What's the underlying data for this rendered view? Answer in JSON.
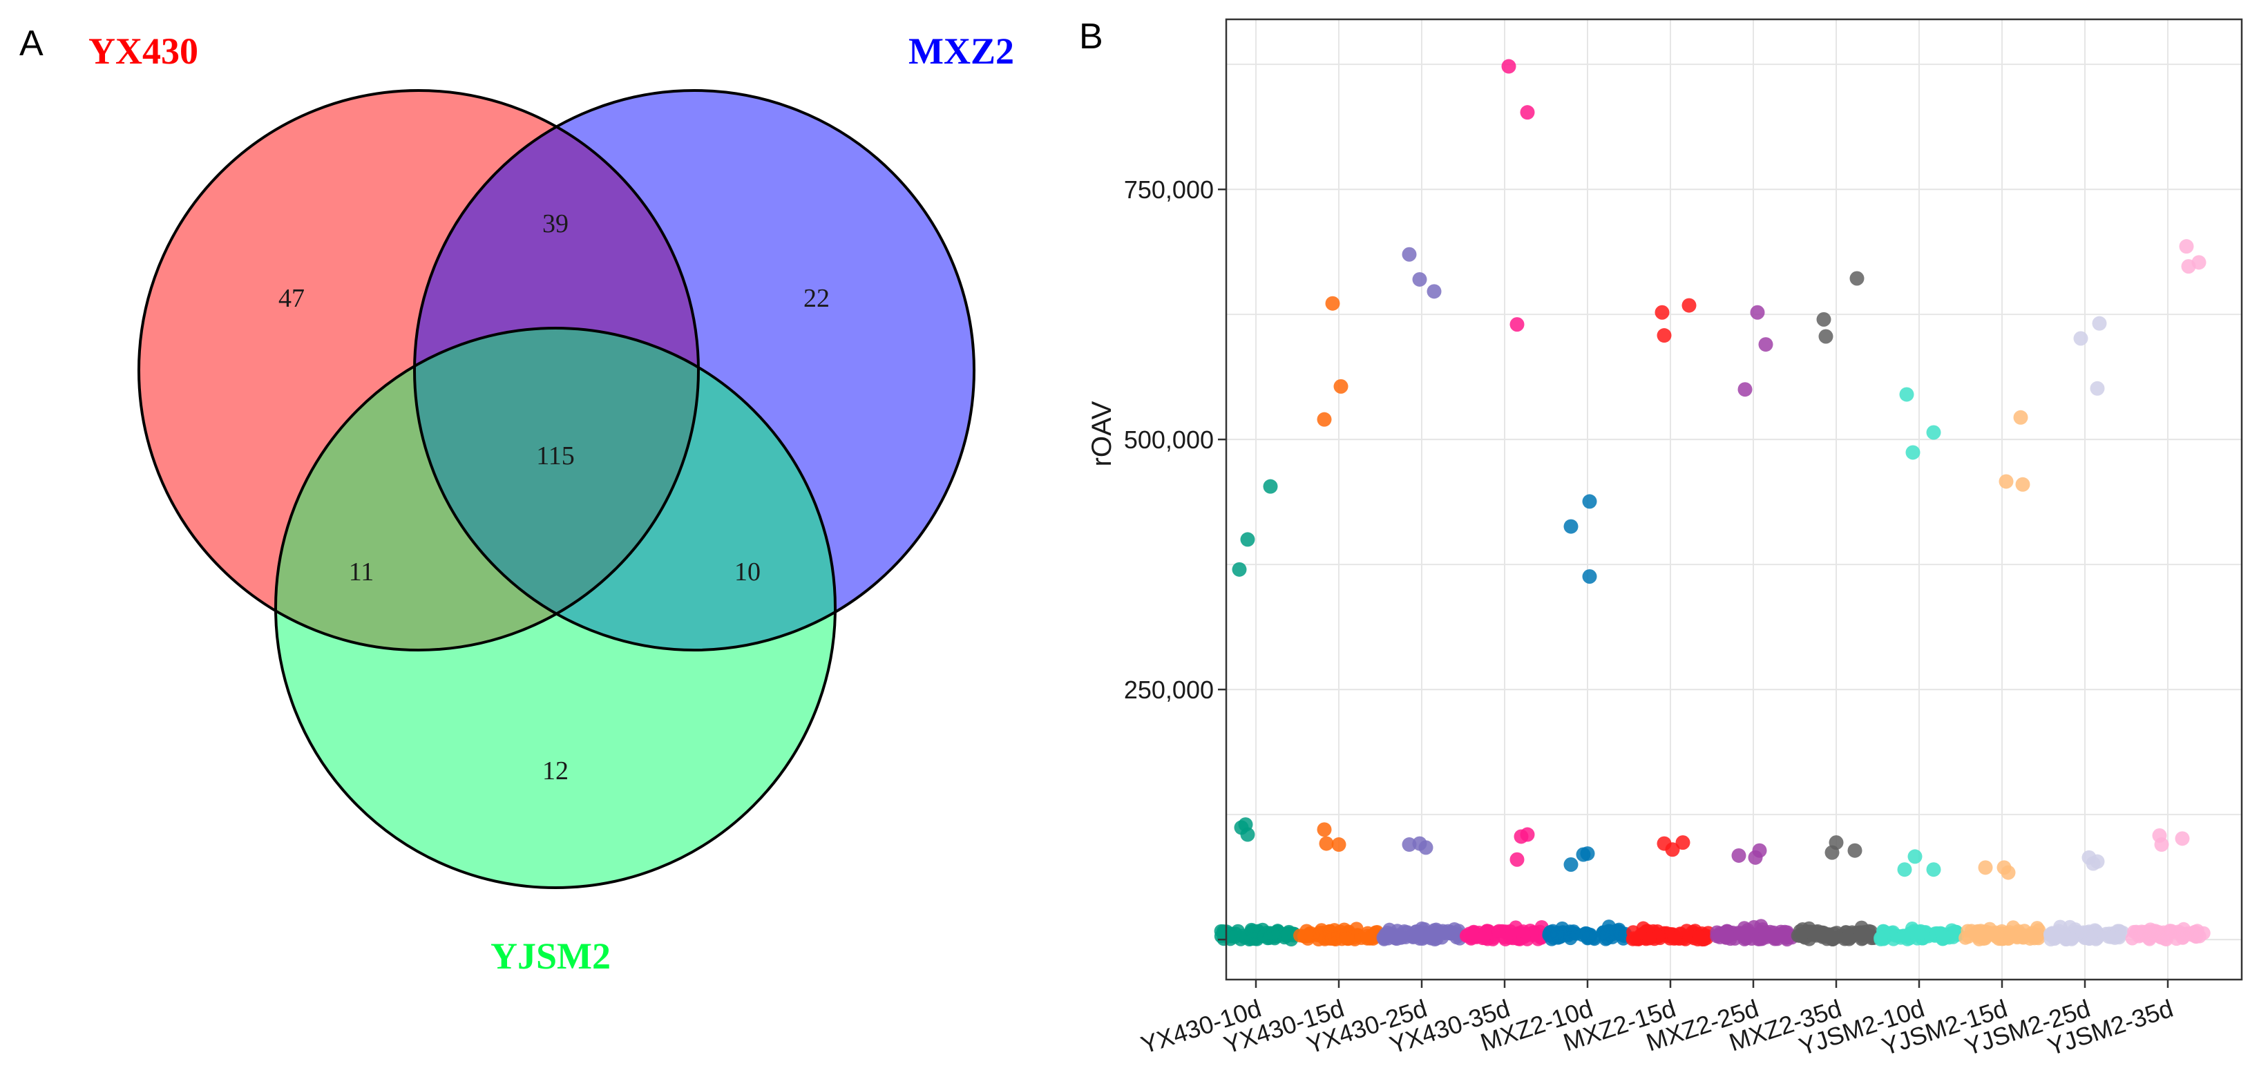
{
  "panel_labels": {
    "a": "A",
    "b": "B"
  },
  "colors": {
    "yx430": "#ff0000",
    "mxz2": "#0000ff",
    "yjsm2": "#00ff44",
    "groups": [
      "#009e82",
      "#ff6a0a",
      "#7a6fbf",
      "#ff1a8c",
      "#0077b5",
      "#ff1a1a",
      "#a041a8",
      "#606060",
      "#40e0c8",
      "#ffbc7a",
      "#cfcfe8",
      "#ffb0d8"
    ]
  },
  "chart_data": [
    {
      "type": "venn",
      "sets": [
        "YX430",
        "MXZ2",
        "YJSM2"
      ],
      "regions": [
        {
          "sets": [
            "YX430"
          ],
          "label": "47"
        },
        {
          "sets": [
            "MXZ2"
          ],
          "label": "22"
        },
        {
          "sets": [
            "YJSM2"
          ],
          "label": "12"
        },
        {
          "sets": [
            "YX430",
            "MXZ2"
          ],
          "label": "39"
        },
        {
          "sets": [
            "YX430",
            "YJSM2"
          ],
          "label": "11"
        },
        {
          "sets": [
            "MXZ2",
            "YJSM2"
          ],
          "label": "10"
        },
        {
          "sets": [
            "YX430",
            "MXZ2",
            "YJSM2"
          ],
          "label": "115"
        }
      ]
    },
    {
      "type": "scatter",
      "title": "",
      "xlabel": "",
      "ylabel": "rOAV",
      "ylim": [
        -40000,
        920000
      ],
      "yticks": [
        0,
        250000,
        500000,
        750000
      ],
      "ytick_labels": [
        "",
        "250,000",
        "500,000",
        "750,000"
      ],
      "grid": true,
      "legend": "none",
      "categories": [
        "YX430-10d",
        "YX430-15d",
        "YX430-25d",
        "YX430-35d",
        "MXZ2-10d",
        "MXZ2-15d",
        "MXZ2-25d",
        "MXZ2-35d",
        "YJSM2-10d",
        "YJSM2-15d",
        "YJSM2-25d",
        "YJSM2-35d"
      ],
      "series": [
        {
          "name": "YX430-10d",
          "high": [
            [
              -0.4,
              370000
            ],
            [
              -0.2,
              400000
            ],
            [
              0.35,
              453000
            ]
          ],
          "mid": [
            [
              -0.35,
              112000
            ],
            [
              -0.25,
              115000
            ],
            [
              -0.2,
              105000
            ]
          ]
        },
        {
          "name": "YX430-15d",
          "high": [
            [
              -0.35,
              520000
            ],
            [
              -0.15,
              636000
            ],
            [
              0.05,
              553000
            ]
          ],
          "mid": [
            [
              -0.35,
              110000
            ],
            [
              -0.3,
              96000
            ],
            [
              0.0,
              95000
            ]
          ]
        },
        {
          "name": "YX430-25d",
          "high": [
            [
              -0.3,
              685000
            ],
            [
              -0.05,
              660000
            ],
            [
              0.3,
              648000
            ]
          ],
          "mid": [
            [
              -0.3,
              95000
            ],
            [
              -0.05,
              96000
            ],
            [
              0.1,
              92000
            ]
          ]
        },
        {
          "name": "YX430-35d",
          "high": [
            [
              0.1,
              873000
            ],
            [
              0.3,
              615000
            ]
          ],
          "mid": [
            [
              0.3,
              80000
            ],
            [
              0.4,
              103000
            ]
          ]
        },
        {
          "name": "YX430-35d (overflow)",
          "group": 3,
          "high": [
            [
              0.55,
              827000
            ]
          ],
          "mid": [
            [
              0.55,
              105000
            ]
          ]
        },
        {
          "name": "MXZ2-10d",
          "high": [
            [
              -0.4,
              413000
            ],
            [
              0.05,
              438000
            ],
            [
              0.05,
              363000
            ]
          ],
          "mid": [
            [
              -0.4,
              75000
            ],
            [
              -0.1,
              85000
            ],
            [
              0.0,
              86000
            ]
          ]
        },
        {
          "name": "MXZ2-15d",
          "high": [
            [
              -0.2,
              627000
            ],
            [
              -0.15,
              604000
            ],
            [
              0.45,
              634000
            ]
          ],
          "mid": [
            [
              -0.15,
              96000
            ],
            [
              0.05,
              90000
            ],
            [
              0.3,
              97000
            ]
          ]
        },
        {
          "name": "MXZ2-25d",
          "high": [
            [
              -0.2,
              550000
            ],
            [
              0.1,
              627000
            ],
            [
              0.3,
              595000
            ]
          ],
          "mid": [
            [
              -0.35,
              84000
            ],
            [
              0.05,
              82000
            ],
            [
              0.15,
              89000
            ]
          ]
        },
        {
          "name": "MXZ2-35d",
          "high": [
            [
              -0.3,
              620000
            ],
            [
              -0.25,
              603000
            ],
            [
              0.5,
              661000
            ]
          ],
          "mid": [
            [
              -0.1,
              87000
            ],
            [
              0.0,
              97000
            ],
            [
              0.45,
              89000
            ]
          ]
        },
        {
          "name": "YJSM2-10d",
          "high": [
            [
              -0.3,
              545000
            ],
            [
              -0.15,
              487000
            ],
            [
              0.35,
              507000
            ]
          ],
          "mid": [
            [
              -0.35,
              70000
            ],
            [
              -0.1,
              83000
            ],
            [
              0.35,
              70000
            ]
          ]
        },
        {
          "name": "YJSM2-15d",
          "high": [
            [
              0.5,
              455000
            ],
            [
              0.1,
              458000
            ],
            [
              0.45,
              522000
            ]
          ],
          "mid": [
            [
              -0.4,
              72000
            ],
            [
              0.05,
              72000
            ],
            [
              0.15,
              67000
            ]
          ]
        },
        {
          "name": "YJSM2-25d",
          "high": [
            [
              -0.1,
              601000
            ],
            [
              0.3,
              551000
            ],
            [
              0.35,
              616000
            ]
          ],
          "mid": [
            [
              0.1,
              82000
            ],
            [
              0.2,
              76000
            ],
            [
              0.3,
              78000
            ]
          ]
        },
        {
          "name": "YJSM2-35d",
          "high": [
            [
              0.45,
              693000
            ],
            [
              0.5,
              673000
            ],
            [
              0.75,
              677000
            ]
          ],
          "mid": [
            [
              -0.2,
              104000
            ],
            [
              -0.15,
              95000
            ],
            [
              0.35,
              101000
            ]
          ]
        }
      ],
      "baseline_note": "dense cluster of points near 0 for each group"
    }
  ]
}
